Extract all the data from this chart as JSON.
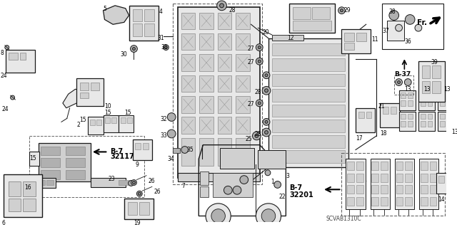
{
  "figsize": [
    6.4,
    3.19
  ],
  "dpi": 100,
  "bg": "#ffffff",
  "lc": "#1a1a1a",
  "gray1": "#e8e8e8",
  "gray2": "#d0d0d0",
  "gray3": "#b0b0b0",
  "gray4": "#888888",
  "dash_color": "#666666",
  "diagram_code": "SCVAB1310C",
  "b7_32117": "B-7\n32117",
  "b7_32201": "B-7\n32201",
  "b37": "B-37",
  "fr": "Fr."
}
